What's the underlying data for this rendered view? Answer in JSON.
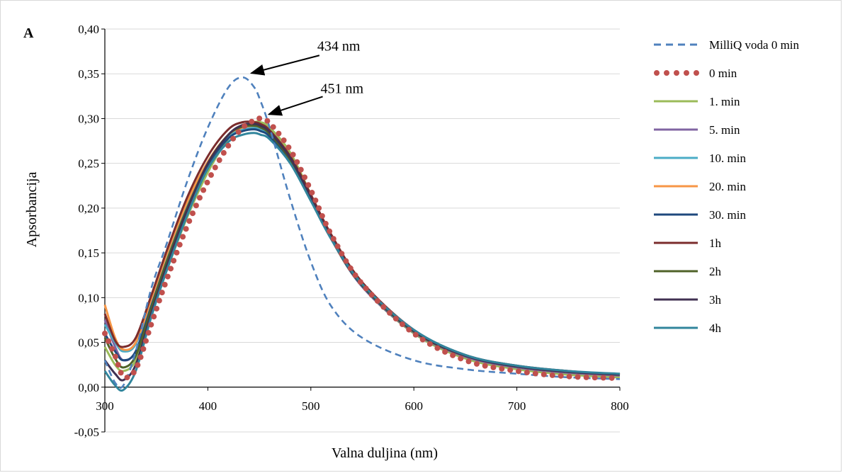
{
  "chart_data": {
    "type": "line",
    "panel_label": "A",
    "xlabel": "Valna duljina (nm)",
    "ylabel": "Apsorbancija",
    "xlim": [
      300,
      800
    ],
    "ylim": [
      -0.05,
      0.4
    ],
    "x_ticks": [
      "300",
      "400",
      "500",
      "600",
      "700",
      "800"
    ],
    "y_ticks": [
      "-0,05",
      "0,00",
      "0,05",
      "0,10",
      "0,15",
      "0,20",
      "0,25",
      "0,30",
      "0,35",
      "0,40"
    ],
    "grid": "horizontal",
    "legend_position": "right",
    "annotations": [
      {
        "text": "434 nm",
        "x": 434,
        "y": 0.346
      },
      {
        "text": "451 nm",
        "x": 451,
        "y": 0.3
      }
    ],
    "x": [
      300,
      310,
      318,
      330,
      345,
      360,
      380,
      400,
      420,
      434,
      445,
      451,
      460,
      480,
      500,
      520,
      550,
      600,
      650,
      700,
      750,
      800
    ],
    "series": [
      {
        "name": "MilliQ voda 0 min",
        "color": "#4f81bd",
        "style": "dash",
        "values": [
          0.03,
          0.005,
          0.002,
          0.04,
          0.11,
          0.16,
          0.23,
          0.29,
          0.335,
          0.346,
          0.335,
          0.32,
          0.29,
          0.21,
          0.14,
          0.09,
          0.055,
          0.03,
          0.02,
          0.015,
          0.011,
          0.009
        ]
      },
      {
        "name": "0 min",
        "color": "#c0504d",
        "style": "dot",
        "values": [
          0.06,
          0.035,
          0.012,
          0.02,
          0.07,
          0.12,
          0.18,
          0.23,
          0.27,
          0.29,
          0.298,
          0.3,
          0.295,
          0.265,
          0.22,
          0.17,
          0.115,
          0.06,
          0.03,
          0.018,
          0.012,
          0.01
        ]
      },
      {
        "name": "1. min",
        "color": "#9bbb59",
        "style": "solid",
        "values": [
          0.045,
          0.025,
          0.018,
          0.03,
          0.08,
          0.13,
          0.19,
          0.24,
          0.278,
          0.292,
          0.296,
          0.296,
          0.29,
          0.262,
          0.215,
          0.165,
          0.112,
          0.06,
          0.032,
          0.02,
          0.014,
          0.011
        ]
      },
      {
        "name": "5. min",
        "color": "#8064a2",
        "style": "solid",
        "values": [
          0.075,
          0.045,
          0.03,
          0.04,
          0.09,
          0.14,
          0.2,
          0.248,
          0.28,
          0.29,
          0.292,
          0.29,
          0.284,
          0.255,
          0.21,
          0.165,
          0.112,
          0.061,
          0.034,
          0.022,
          0.016,
          0.013
        ]
      },
      {
        "name": "10. min",
        "color": "#4bacc6",
        "style": "solid",
        "values": [
          0.07,
          0.05,
          0.04,
          0.048,
          0.095,
          0.145,
          0.205,
          0.25,
          0.28,
          0.288,
          0.29,
          0.288,
          0.282,
          0.253,
          0.21,
          0.165,
          0.113,
          0.062,
          0.035,
          0.023,
          0.017,
          0.014
        ]
      },
      {
        "name": "20. min",
        "color": "#f79646",
        "style": "solid",
        "values": [
          0.092,
          0.055,
          0.042,
          0.05,
          0.098,
          0.148,
          0.207,
          0.252,
          0.282,
          0.29,
          0.292,
          0.29,
          0.284,
          0.255,
          0.212,
          0.166,
          0.114,
          0.062,
          0.035,
          0.023,
          0.017,
          0.014
        ]
      },
      {
        "name": "30. min",
        "color": "#1f497d",
        "style": "solid",
        "values": [
          0.06,
          0.04,
          0.03,
          0.04,
          0.09,
          0.14,
          0.2,
          0.248,
          0.278,
          0.286,
          0.288,
          0.286,
          0.28,
          0.252,
          0.21,
          0.165,
          0.113,
          0.062,
          0.035,
          0.023,
          0.017,
          0.014
        ]
      },
      {
        "name": "1h",
        "color": "#7b2c2c",
        "style": "solid",
        "values": [
          0.082,
          0.052,
          0.045,
          0.055,
          0.102,
          0.152,
          0.212,
          0.258,
          0.288,
          0.296,
          0.296,
          0.294,
          0.287,
          0.258,
          0.215,
          0.17,
          0.117,
          0.064,
          0.036,
          0.024,
          0.018,
          0.014
        ]
      },
      {
        "name": "2h",
        "color": "#4f6228",
        "style": "solid",
        "values": [
          0.055,
          0.032,
          0.022,
          0.035,
          0.088,
          0.14,
          0.2,
          0.25,
          0.282,
          0.291,
          0.292,
          0.29,
          0.283,
          0.254,
          0.211,
          0.166,
          0.114,
          0.062,
          0.035,
          0.023,
          0.017,
          0.014
        ]
      },
      {
        "name": "3h",
        "color": "#403152",
        "style": "solid",
        "values": [
          0.03,
          0.015,
          0.008,
          0.025,
          0.082,
          0.135,
          0.198,
          0.25,
          0.282,
          0.293,
          0.294,
          0.292,
          0.285,
          0.256,
          0.212,
          0.167,
          0.115,
          0.063,
          0.035,
          0.023,
          0.017,
          0.014
        ]
      },
      {
        "name": "4h",
        "color": "#31859c",
        "style": "solid",
        "values": [
          0.018,
          0.002,
          -0.003,
          0.018,
          0.078,
          0.13,
          0.192,
          0.244,
          0.274,
          0.282,
          0.284,
          0.282,
          0.277,
          0.25,
          0.208,
          0.165,
          0.115,
          0.064,
          0.036,
          0.024,
          0.018,
          0.015
        ]
      }
    ]
  }
}
